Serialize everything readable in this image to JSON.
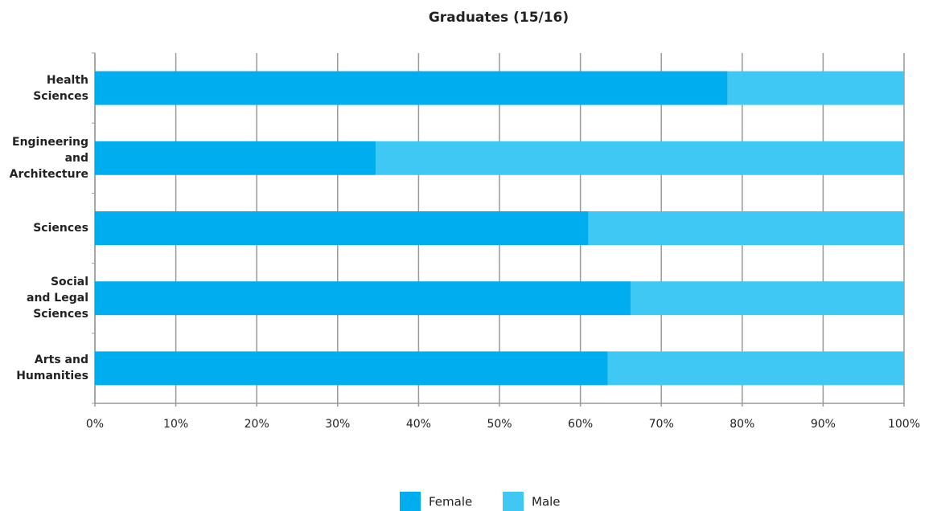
{
  "chart_data": {
    "type": "stacked-bar-horizontal",
    "title": "Graduates (15/16)",
    "categories": [
      "Health\nSciences",
      "Engineering\nand\nArchitecture",
      "Sciences",
      "Social\nand Legal\nSciences",
      "Arts and\nHumanities"
    ],
    "series": [
      {
        "name": "Female",
        "color": "#00aeef",
        "values": [
          78.2,
          34.7,
          61,
          66.2,
          63.4
        ]
      },
      {
        "name": "Male",
        "color": "#40c8f4",
        "values": [
          21.8,
          65.3,
          39,
          33.8,
          36.6
        ]
      }
    ],
    "xlim": [
      0,
      100
    ],
    "xticks": [
      {
        "value": 0,
        "label": "0%"
      },
      {
        "value": 10,
        "label": "10%"
      },
      {
        "value": 20,
        "label": "20%"
      },
      {
        "value": 30,
        "label": "30%"
      },
      {
        "value": 40,
        "label": "40%"
      },
      {
        "value": 50,
        "label": "50%"
      },
      {
        "value": 60,
        "label": "60%"
      },
      {
        "value": 70,
        "label": "70%"
      },
      {
        "value": 80,
        "label": "80%"
      },
      {
        "value": 90,
        "label": "90%"
      },
      {
        "value": 100,
        "label": "100%"
      }
    ],
    "grid": true,
    "legend": "bottom"
  }
}
